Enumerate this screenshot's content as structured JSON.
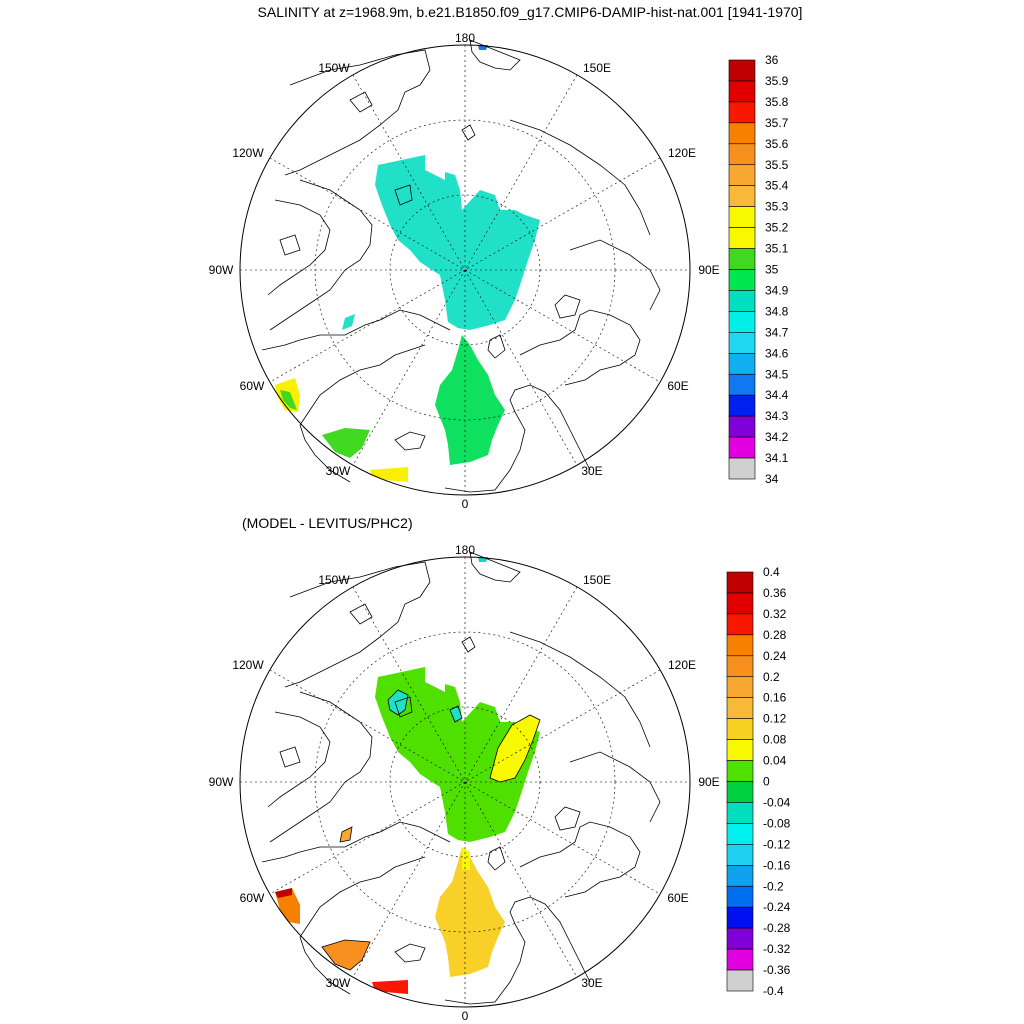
{
  "title": "SALINITY at z=1968.9m, b.e21.B1850.f09_g17.CMIP6-DAMIP-hist-nat.001 [1941-1970]",
  "subtitle": "(MODEL - LEVITUS/PHC2)",
  "longitude_labels": [
    "180",
    "150E",
    "120E",
    "90E",
    "60E",
    "30E",
    "0",
    "30W",
    "60W",
    "90W",
    "120W",
    "150W"
  ],
  "top_colorbar": {
    "labels": [
      "36",
      "35.9",
      "35.8",
      "35.7",
      "35.6",
      "35.5",
      "35.4",
      "35.3",
      "35.2",
      "35.1",
      "35",
      "34.9",
      "34.8",
      "34.7",
      "34.6",
      "34.5",
      "34.4",
      "34.3",
      "34.2",
      "34.1",
      "34"
    ],
    "colors": [
      "#c00000",
      "#e00000",
      "#f81800",
      "#f88000",
      "#f89020",
      "#f8a830",
      "#f8b838",
      "#f8f800",
      "#f8f800",
      "#40d820",
      "#00e850",
      "#00e0c0",
      "#00f0e8",
      "#20d8f0",
      "#10b0f0",
      "#1078f0",
      "#0020f0",
      "#8000d8",
      "#e000e0",
      "#d0d0d0",
      "#707070"
    ]
  },
  "bottom_colorbar": {
    "labels": [
      "0.4",
      "0.36",
      "0.32",
      "0.28",
      "0.24",
      "0.2",
      "0.16",
      "0.12",
      "0.08",
      "0.04",
      "0",
      "-0.04",
      "-0.08",
      "-0.12",
      "-0.16",
      "-0.2",
      "-0.24",
      "-0.28",
      "-0.32",
      "-0.36",
      "-0.4"
    ],
    "colors": [
      "#c00000",
      "#e00000",
      "#f81800",
      "#f88000",
      "#f89020",
      "#f8a830",
      "#f8b838",
      "#f8d020",
      "#f8f800",
      "#50e000",
      "#00d040",
      "#00e0c0",
      "#00f0f0",
      "#20d0f0",
      "#10a0f0",
      "#0070f0",
      "#0010f0",
      "#8000d8",
      "#e000e0",
      "#d0d0d0",
      "#707070"
    ]
  },
  "map_fields": {
    "top": {
      "arctic_basin": "#20e0c8",
      "nordic_seas": "#10e060",
      "irminger": "#40d820",
      "labrador_edge": "#f8f000",
      "iceland_basin": "#f8f000",
      "canada_patch": "#20e0c8"
    },
    "bottom": {
      "arctic_basin": "#50e000",
      "eurasian_anomaly": "#f8f800",
      "nordic_seas": "#f8d028",
      "irminger": "#f89020",
      "labrador_edge": "#f88000",
      "iceland_basin": "#f81800",
      "canada_patch": "#f8a830"
    }
  }
}
